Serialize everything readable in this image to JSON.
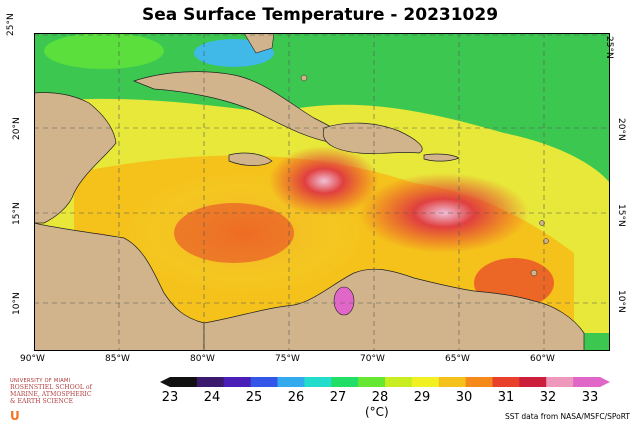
{
  "title": "Sea Surface Temperature - 20231029",
  "map": {
    "lon_ticks": [
      "90°W",
      "85°W",
      "80°W",
      "75°W",
      "70°W",
      "65°W",
      "60°W"
    ],
    "lat_ticks_left": [
      "25°N",
      "20°N",
      "15°N",
      "10°N"
    ],
    "lat_ticks_right": [
      "25°N",
      "20°N",
      "15°N",
      "10°N"
    ],
    "colors": {
      "land": "#d2b48c",
      "ocean_warm": "#e8e83a",
      "ocean_hot": "#e8402a",
      "ocean_cool": "#3cc850",
      "ocean_cold": "#40b8e8"
    }
  },
  "colorbar": {
    "labels": [
      "23",
      "24",
      "25",
      "26",
      "27",
      "28",
      "29",
      "30",
      "31",
      "32",
      "33"
    ],
    "unit": "(°C)",
    "colors": [
      "#111111",
      "#3b1a6e",
      "#4a1fb8",
      "#3355e8",
      "#33aaee",
      "#22ddcc",
      "#22dd66",
      "#66e833",
      "#c8ee22",
      "#f0f022",
      "#f5c21c",
      "#f58a1a",
      "#e8402a",
      "#cc1f3c",
      "#ee99bb",
      "#e066c8"
    ]
  },
  "logo": {
    "university": "UNIVERSITY OF MIAMI",
    "school_lines": [
      "ROSENSTIEL SCHOOL of",
      "MARINE, ATMOSPHERIC",
      "& EARTH SCIENCE"
    ],
    "mark": "U"
  },
  "credit": "SST data from NASA/MSFC/SPoRT"
}
